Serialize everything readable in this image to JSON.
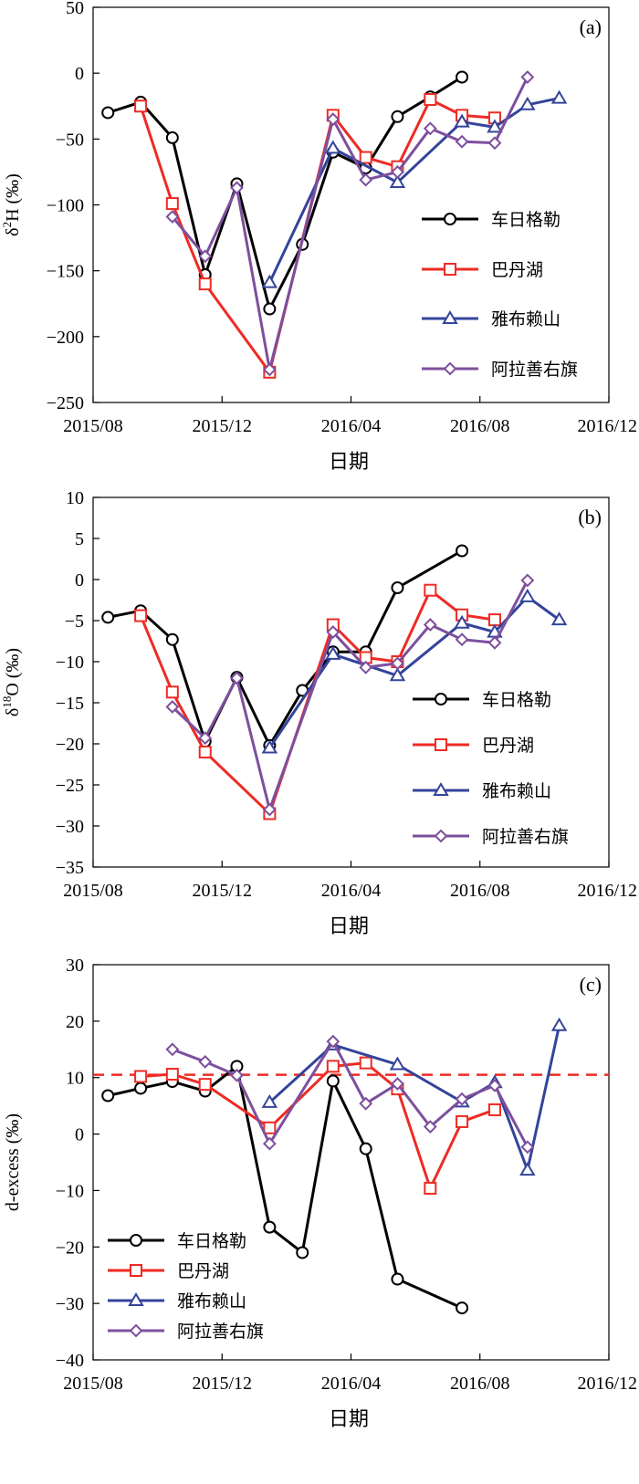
{
  "x_ticks": [
    "2015/08",
    "2015/12",
    "2016/04",
    "2016/08",
    "2016/12"
  ],
  "series_styles": [
    {
      "name": "车日格勒",
      "color": "#000000",
      "marker": "circle"
    },
    {
      "name": "巴丹湖",
      "color": "#ee2b24",
      "marker": "square"
    },
    {
      "name": "雅布赖山",
      "color": "#34449a",
      "marker": "triangle"
    },
    {
      "name": "阿拉善右旗",
      "color": "#7d4f9e",
      "marker": "diamond"
    }
  ],
  "chart_data": [
    {
      "type": "line",
      "panel_label": "(a)",
      "ylabel": "δ²H (‰)",
      "ylabel_main": "δ",
      "ylabel_sup": "2",
      "ylabel_rest": "H (‰)",
      "xlabel": "日期",
      "xlim": [
        "2015/08",
        "2016/12"
      ],
      "ylim": [
        -250,
        50
      ],
      "yticks": [
        50,
        0,
        -50,
        -100,
        -150,
        -200,
        -250
      ],
      "ytick_labels": [
        "50",
        "0",
        "−50",
        "−100",
        "−150",
        "−200",
        "−250"
      ],
      "x_ticks": [
        "2015/08",
        "2015/12",
        "2016/04",
        "2016/08",
        "2016/12"
      ],
      "legend": "right-middle",
      "series": [
        {
          "name": "车日格勒",
          "points": [
            [
              "2015-08-15",
              -30
            ],
            [
              "2015-09-15",
              -22
            ],
            [
              "2015-10-15",
              -49
            ],
            [
              "2015-11-15",
              -153
            ],
            [
              "2015-12-15",
              -84
            ],
            [
              "2016-01-15",
              -179
            ],
            [
              "2016-02-15",
              -130
            ],
            [
              "2016-03-15",
              -60
            ],
            [
              "2016-04-15",
              -72
            ],
            [
              "2016-05-15",
              -33
            ],
            [
              "2016-06-15",
              -18
            ],
            [
              "2016-07-15",
              -3
            ]
          ]
        },
        {
          "name": "巴丹湖",
          "points": [
            [
              "2015-09-15",
              -25
            ],
            [
              "2015-10-15",
              -99
            ],
            [
              "2015-11-15",
              -160
            ],
            [
              "2016-01-15",
              -227
            ],
            [
              "2016-03-15",
              -32
            ],
            [
              "2016-04-15",
              -64
            ],
            [
              "2016-05-15",
              -71
            ],
            [
              "2016-06-15",
              -20
            ],
            [
              "2016-07-15",
              -32
            ],
            [
              "2016-08-15",
              -34
            ]
          ]
        },
        {
          "name": "雅布赖山",
          "points": [
            [
              "2016-01-15",
              -159
            ],
            [
              "2016-03-15",
              -57
            ],
            [
              "2016-05-15",
              -83
            ],
            [
              "2016-07-15",
              -37
            ],
            [
              "2016-08-15",
              -41
            ],
            [
              "2016-09-15",
              -24
            ],
            [
              "2016-10-15",
              -19
            ]
          ]
        },
        {
          "name": "阿拉善右旗",
          "points": [
            [
              "2015-10-15",
              -109
            ],
            [
              "2015-11-15",
              -139
            ],
            [
              "2015-12-15",
              -87
            ],
            [
              "2016-01-15",
              -225
            ],
            [
              "2016-03-15",
              -35
            ],
            [
              "2016-04-15",
              -81
            ],
            [
              "2016-05-15",
              -75
            ],
            [
              "2016-06-15",
              -42
            ],
            [
              "2016-07-15",
              -52
            ],
            [
              "2016-08-15",
              -53
            ],
            [
              "2016-09-15",
              -3
            ]
          ]
        }
      ]
    },
    {
      "type": "line",
      "panel_label": "(b)",
      "ylabel": "δ¹⁸O (‰)",
      "ylabel_main": "δ",
      "ylabel_sup": "18",
      "ylabel_rest": "O (‰)",
      "xlabel": "日期",
      "xlim": [
        "2015/08",
        "2016/12"
      ],
      "ylim": [
        -35,
        10
      ],
      "yticks": [
        10,
        5,
        0,
        -5,
        -10,
        -15,
        -20,
        -25,
        -30,
        -35
      ],
      "ytick_labels": [
        "10",
        "5",
        "0",
        "−5",
        "−10",
        "−15",
        "−20",
        "−25",
        "−30",
        "−35"
      ],
      "x_ticks": [
        "2015/08",
        "2015/12",
        "2016/04",
        "2016/08",
        "2016/12"
      ],
      "legend": "right-bottom",
      "series": [
        {
          "name": "车日格勒",
          "points": [
            [
              "2015-08-15",
              -4.6
            ],
            [
              "2015-09-15",
              -3.8
            ],
            [
              "2015-10-15",
              -7.3
            ],
            [
              "2015-11-15",
              -19.7
            ],
            [
              "2015-12-15",
              -11.9
            ],
            [
              "2016-01-15",
              -20.2
            ],
            [
              "2016-02-15",
              -13.5
            ],
            [
              "2016-03-15",
              -8.8
            ],
            [
              "2016-04-15",
              -8.8
            ],
            [
              "2016-05-15",
              -1
            ],
            [
              "2016-07-15",
              3.5
            ]
          ]
        },
        {
          "name": "巴丹湖",
          "points": [
            [
              "2015-09-15",
              -4.4
            ],
            [
              "2015-10-15",
              -13.7
            ],
            [
              "2015-11-15",
              -21
            ],
            [
              "2016-01-15",
              -28.5
            ],
            [
              "2016-03-15",
              -5.5
            ],
            [
              "2016-04-15",
              -9.5
            ],
            [
              "2016-05-15",
              -10
            ],
            [
              "2016-06-15",
              -1.3
            ],
            [
              "2016-07-15",
              -4.3
            ],
            [
              "2016-08-15",
              -4.9
            ]
          ]
        },
        {
          "name": "雅布赖山",
          "points": [
            [
              "2016-01-15",
              -20.5
            ],
            [
              "2016-03-15",
              -9.1
            ],
            [
              "2016-05-15",
              -11.7
            ],
            [
              "2016-07-15",
              -5.3
            ],
            [
              "2016-08-15",
              -6.4
            ],
            [
              "2016-09-15",
              -2.1
            ],
            [
              "2016-10-15",
              -4.9
            ]
          ]
        },
        {
          "name": "阿拉善右旗",
          "points": [
            [
              "2015-10-15",
              -15.5
            ],
            [
              "2015-11-15",
              -19.3
            ],
            [
              "2015-12-15",
              -12
            ],
            [
              "2016-01-15",
              -28
            ],
            [
              "2016-03-15",
              -6.4
            ],
            [
              "2016-04-15",
              -10.7
            ],
            [
              "2016-05-15",
              -10.2
            ],
            [
              "2016-06-15",
              -5.5
            ],
            [
              "2016-07-15",
              -7.3
            ],
            [
              "2016-08-15",
              -7.7
            ],
            [
              "2016-09-15",
              -0.1
            ]
          ]
        }
      ]
    },
    {
      "type": "line",
      "panel_label": "(c)",
      "ylabel": "d-excess (‰)",
      "xlabel": "日期",
      "xlim": [
        "2015/08",
        "2016/12"
      ],
      "ylim": [
        -40,
        30
      ],
      "yticks": [
        30,
        20,
        10,
        0,
        -10,
        -20,
        -30,
        -40
      ],
      "ytick_labels": [
        "30",
        "20",
        "10",
        "0",
        "−10",
        "−20",
        "−30",
        "−40"
      ],
      "x_ticks": [
        "2015/08",
        "2015/12",
        "2016/04",
        "2016/08",
        "2016/12"
      ],
      "reference_line": {
        "y": 10.5,
        "color": "#ee2b24",
        "style": "dashed"
      },
      "legend": "left-bottom",
      "series": [
        {
          "name": "车日格勒",
          "points": [
            [
              "2015-08-15",
              6.8
            ],
            [
              "2015-09-15",
              8.1
            ],
            [
              "2015-10-15",
              9.3
            ],
            [
              "2015-11-15",
              7.6
            ],
            [
              "2015-12-15",
              12
            ],
            [
              "2016-01-15",
              -16.5
            ],
            [
              "2016-02-15",
              -21
            ],
            [
              "2016-03-15",
              9.4
            ],
            [
              "2016-04-15",
              -2.6
            ],
            [
              "2016-05-15",
              -25.7
            ],
            [
              "2016-07-15",
              -30.8
            ]
          ]
        },
        {
          "name": "巴丹湖",
          "points": [
            [
              "2015-09-15",
              10.2
            ],
            [
              "2015-10-15",
              10.6
            ],
            [
              "2015-11-15",
              8.8
            ],
            [
              "2016-01-15",
              1.1
            ],
            [
              "2016-03-15",
              12
            ],
            [
              "2016-04-15",
              12.6
            ],
            [
              "2016-05-15",
              8
            ],
            [
              "2016-06-15",
              -9.6
            ],
            [
              "2016-07-15",
              2.2
            ],
            [
              "2016-08-15",
              4.3
            ]
          ]
        },
        {
          "name": "雅布赖山",
          "points": [
            [
              "2016-01-15",
              5.6
            ],
            [
              "2016-03-15",
              15.8
            ],
            [
              "2016-05-15",
              12.3
            ],
            [
              "2016-07-15",
              5.7
            ],
            [
              "2016-08-15",
              9.1
            ],
            [
              "2016-09-15",
              -6.4
            ],
            [
              "2016-10-15",
              19.2
            ]
          ]
        },
        {
          "name": "阿拉善右旗",
          "points": [
            [
              "2015-10-15",
              15
            ],
            [
              "2015-11-15",
              12.8
            ],
            [
              "2015-12-15",
              10.4
            ],
            [
              "2016-01-15",
              -1.7
            ],
            [
              "2016-03-15",
              16.4
            ],
            [
              "2016-04-15",
              5.4
            ],
            [
              "2016-05-15",
              8.9
            ],
            [
              "2016-06-15",
              1.3
            ],
            [
              "2016-07-15",
              6.2
            ],
            [
              "2016-08-15",
              8.6
            ],
            [
              "2016-09-15",
              -2.3
            ]
          ]
        }
      ]
    }
  ]
}
